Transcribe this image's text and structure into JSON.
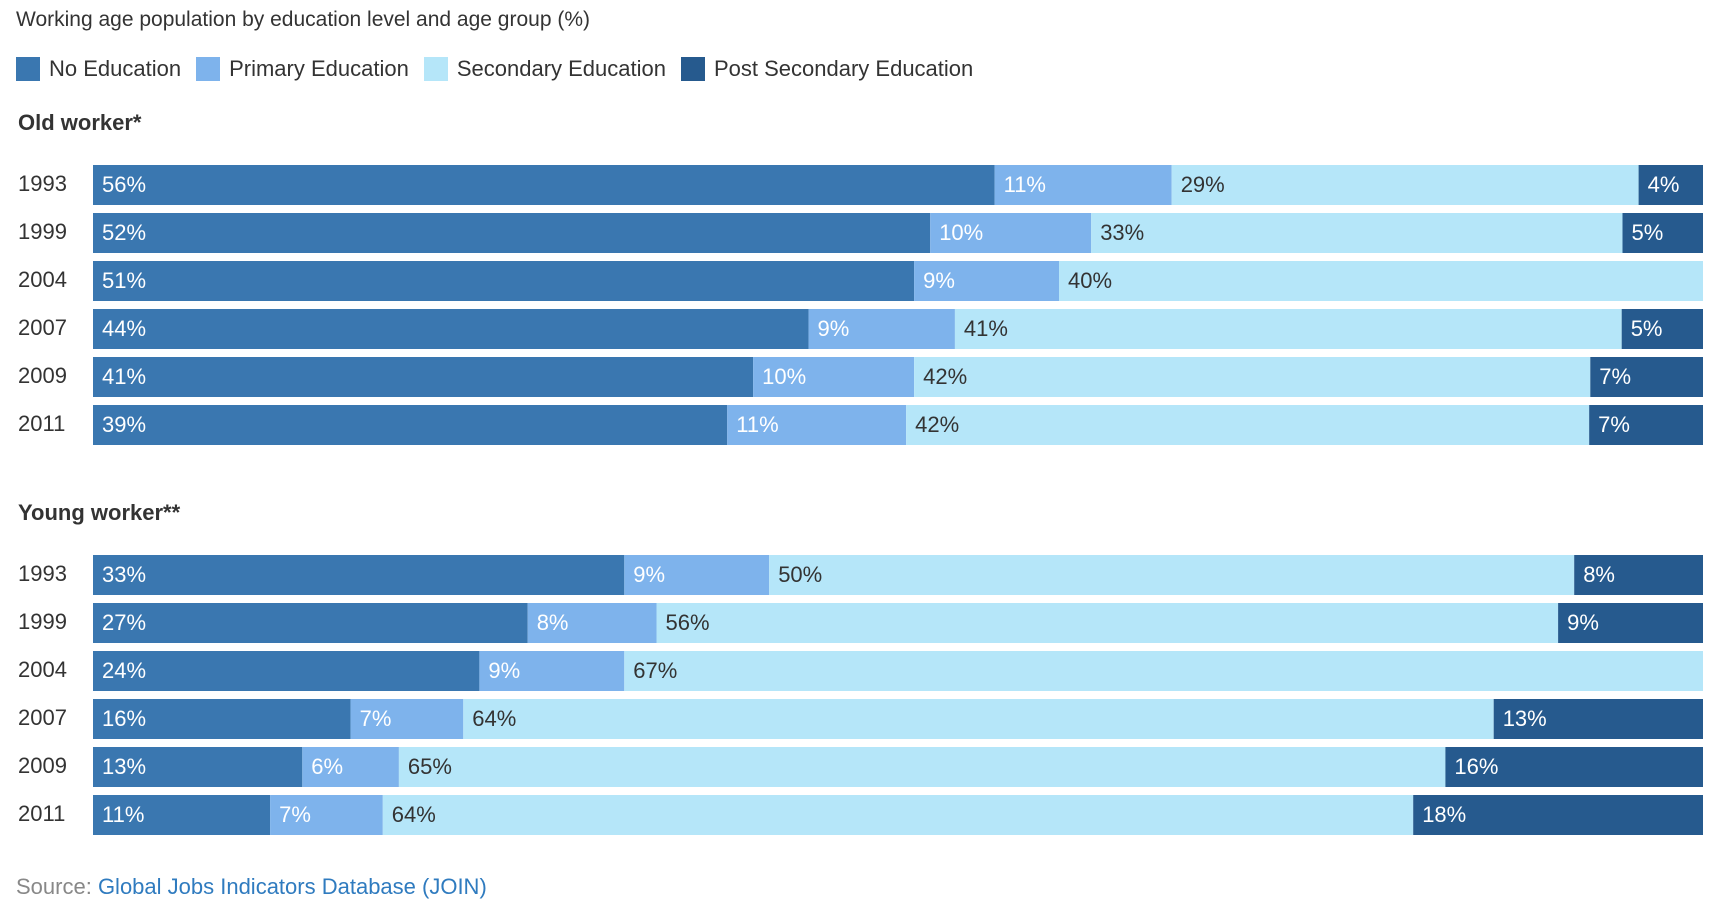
{
  "chart_data": {
    "type": "bar",
    "orientation": "horizontal",
    "stacked": true,
    "title": "Working age population by education level and age group (%)",
    "series_colors": [
      "#3a77b0",
      "#7eb3ec",
      "#b5e6f9",
      "#265a8e"
    ],
    "label_colors": [
      "#ffffff",
      "#ffffff",
      "#333333",
      "#ffffff"
    ],
    "legend": [
      "No Education",
      "Primary Education",
      "Secondary Education",
      "Post Secondary Education"
    ],
    "legend_position": "top-left",
    "xlim": [
      0,
      100
    ],
    "grid": false,
    "groups": [
      {
        "name": "Old worker*",
        "categories": [
          "1993",
          "1999",
          "2004",
          "2007",
          "2009",
          "2011"
        ],
        "series": [
          {
            "name": "No Education",
            "values": [
              56,
              52,
              51,
              44,
              41,
              39
            ],
            "labels": [
              "56%",
              "52%",
              "51%",
              "44%",
              "41%",
              "39%"
            ]
          },
          {
            "name": "Primary Education",
            "values": [
              11,
              10,
              9,
              9,
              10,
              11
            ],
            "labels": [
              "11%",
              "10%",
              "9%",
              "9%",
              "10%",
              "11%"
            ]
          },
          {
            "name": "Secondary Education",
            "values": [
              29,
              33,
              40,
              41,
              42,
              42
            ],
            "labels": [
              "29%",
              "33%",
              "40%",
              "41%",
              "42%",
              "42%"
            ]
          },
          {
            "name": "Post Secondary Education",
            "values": [
              4,
              5,
              0,
              5,
              7,
              7
            ],
            "labels": [
              "4%",
              "5%",
              "",
              "5%",
              "7%",
              "7%"
            ]
          }
        ]
      },
      {
        "name": "Young worker**",
        "categories": [
          "1993",
          "1999",
          "2004",
          "2007",
          "2009",
          "2011"
        ],
        "series": [
          {
            "name": "No Education",
            "values": [
              33,
              27,
              24,
              16,
              13,
              11
            ],
            "labels": [
              "33%",
              "27%",
              "24%",
              "16%",
              "13%",
              "11%"
            ]
          },
          {
            "name": "Primary Education",
            "values": [
              9,
              8,
              9,
              7,
              6,
              7
            ],
            "labels": [
              "9%",
              "8%",
              "9%",
              "7%",
              "6%",
              "7%"
            ]
          },
          {
            "name": "Secondary Education",
            "values": [
              50,
              56,
              67,
              64,
              65,
              64
            ],
            "labels": [
              "50%",
              "56%",
              "67%",
              "64%",
              "65%",
              "64%"
            ]
          },
          {
            "name": "Post Secondary Education",
            "values": [
              8,
              9,
              0,
              13,
              16,
              18
            ],
            "labels": [
              "8%",
              "9%",
              "",
              "13%",
              "16%",
              "18%"
            ]
          }
        ]
      }
    ]
  },
  "source": {
    "prefix": "Source: ",
    "link_text": "Global Jobs Indicators Database (JOIN)"
  }
}
